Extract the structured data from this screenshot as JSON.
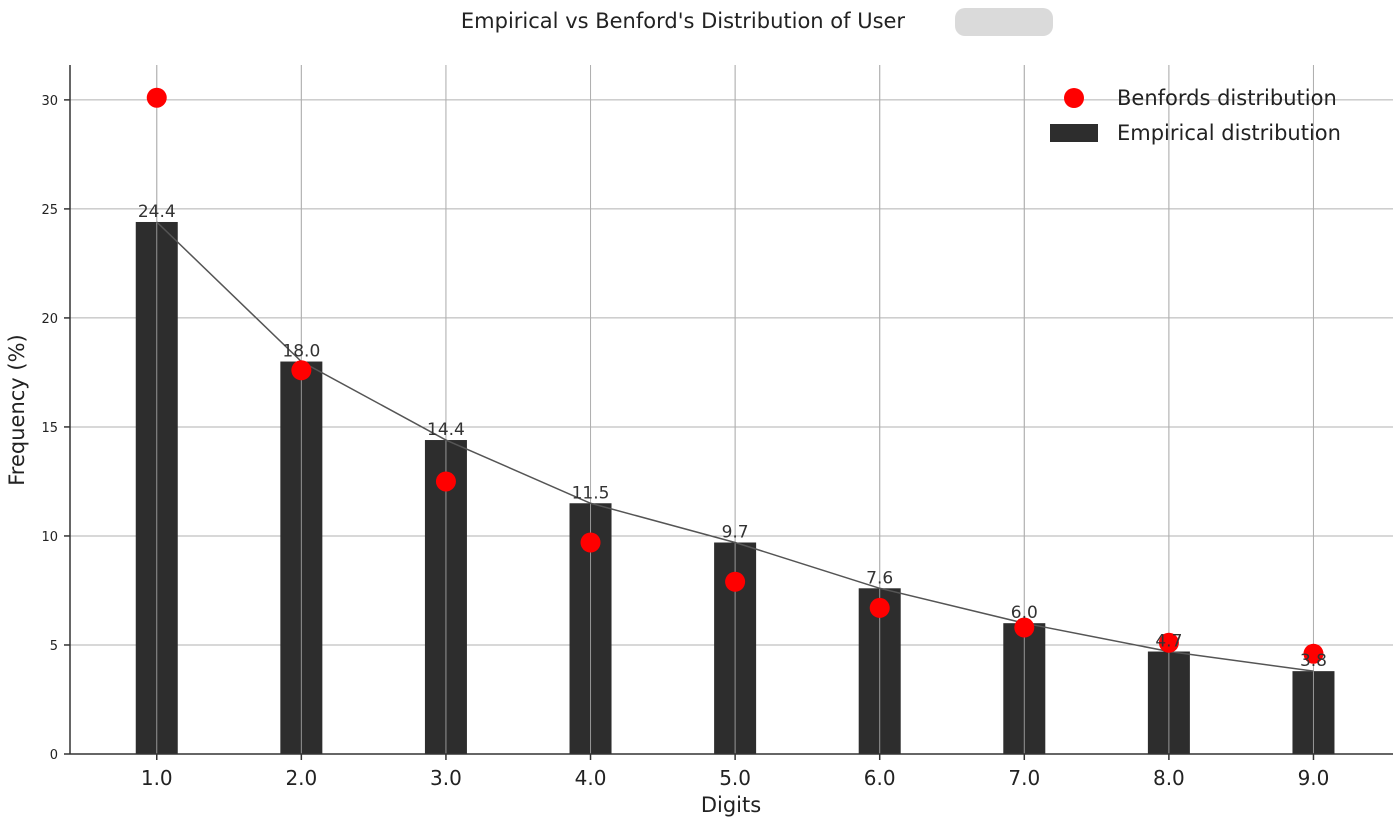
{
  "chart_data": {
    "type": "bar",
    "title": "Empirical vs Benford's Distribution of User",
    "title_redacted": true,
    "xlabel": "Digits",
    "ylabel": "Frequency (%)",
    "categories": [
      "1.0",
      "2.0",
      "3.0",
      "4.0",
      "5.0",
      "6.0",
      "7.0",
      "8.0",
      "9.0"
    ],
    "x": [
      1,
      2,
      3,
      4,
      5,
      6,
      7,
      8,
      9
    ],
    "xlim": [
      0.4,
      9.55
    ],
    "ylim": [
      0,
      31.6
    ],
    "yticks": [
      0,
      5,
      10,
      15,
      20,
      25,
      30
    ],
    "grid": true,
    "legend_position": "top-right",
    "series": [
      {
        "name": "Empirical distribution",
        "kind": "bar",
        "color": "#2d2d2d",
        "values": [
          24.4,
          18.0,
          14.4,
          11.5,
          9.7,
          7.6,
          6.0,
          4.7,
          3.8
        ],
        "labels": [
          "24.4",
          "18.0",
          "14.4",
          "11.5",
          "9.7",
          "7.6",
          "6.0",
          "4.7",
          "3.8"
        ],
        "connecting_line": true,
        "line_color": "#555555"
      },
      {
        "name": "Benfords distribution",
        "kind": "scatter",
        "color": "#ff0000",
        "values": [
          30.1,
          17.6,
          12.5,
          9.7,
          7.9,
          6.7,
          5.8,
          5.1,
          4.6
        ]
      }
    ]
  }
}
